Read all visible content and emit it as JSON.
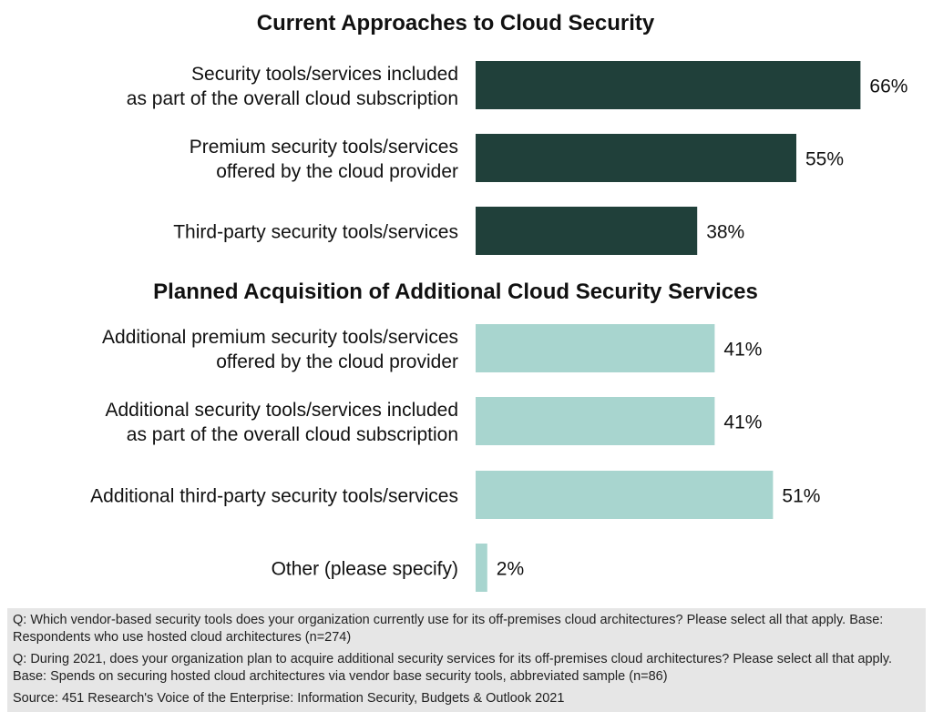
{
  "chart_data": [
    {
      "type": "bar",
      "orientation": "horizontal",
      "title": "Current Approaches to Cloud Security",
      "categories": [
        [
          "Security tools/services included",
          "as part of the overall cloud subscription"
        ],
        [
          "Premium security tools/services",
          "offered by the cloud provider"
        ],
        [
          "Third-party security tools/services"
        ]
      ],
      "values": [
        66,
        55,
        38
      ],
      "labels": [
        "66%",
        "55%",
        "38%"
      ],
      "unit": "%",
      "color": "#20403a"
    },
    {
      "type": "bar",
      "orientation": "horizontal",
      "title": "Planned Acquisition of Additional Cloud Security Services",
      "categories": [
        [
          "Additional premium security tools/services",
          "offered by the cloud provider"
        ],
        [
          "Additional security tools/services included",
          "as part of the overall cloud subscription"
        ],
        [
          "Additional third-party security tools/services"
        ],
        [
          "Other (please specify)"
        ]
      ],
      "values": [
        41,
        41,
        51,
        2
      ],
      "labels": [
        "41%",
        "41%",
        "51%",
        "2%"
      ],
      "unit": "%",
      "color": "#a8d5cf"
    }
  ],
  "notes": {
    "q1": "Q: Which vendor-based security tools does your organization currently use for its off-premises cloud architectures? Please select all that apply. Base: Respondents who use hosted cloud architectures (n=274)",
    "q2": "Q: During 2021, does your organization plan to acquire additional security services for its off-premises cloud architectures? Please select all that apply. Base: Spends on securing hosted cloud architectures via vendor base security tools, abbreviated sample (n=86)",
    "source": "Source: 451 Research's Voice of the Enterprise: Information Security, Budgets & Outlook 2021"
  }
}
